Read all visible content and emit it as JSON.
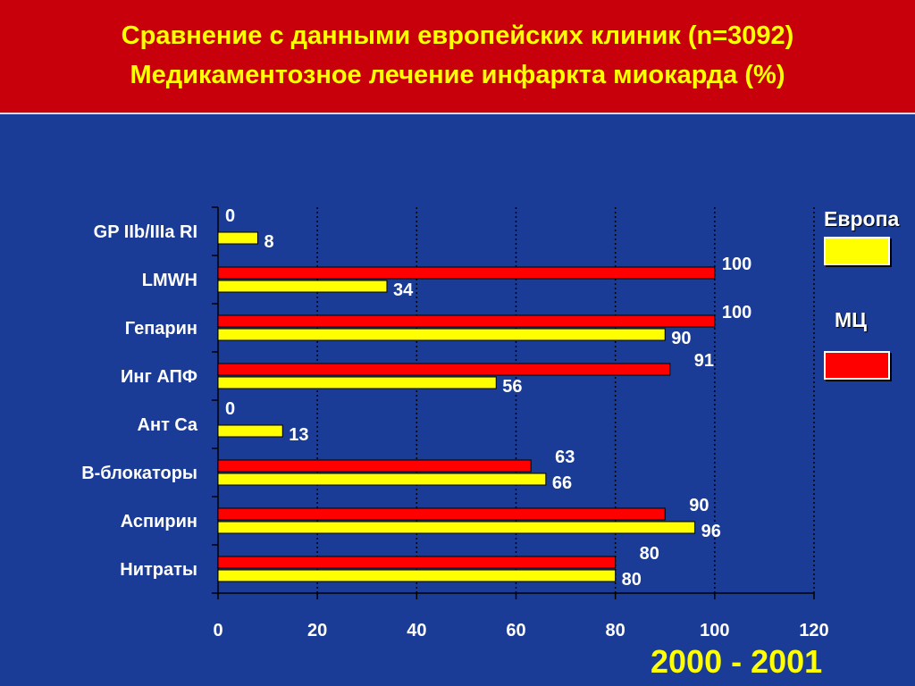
{
  "slide": {
    "title_line1": "Сравнение с данными европейских клиник (n=3092)",
    "title_line2": "Медикаментозное лечение инфаркта миокарда (%)",
    "years": "2000 - 2001"
  },
  "legend": {
    "europe_label": "Европа",
    "mc_label": "МЦ",
    "europe_color": "#ffff00",
    "mc_color": "#ff0000"
  },
  "colors": {
    "background": "#1a3c96",
    "header": "#c8000b",
    "title_text": "#ffff00",
    "europe_bar": "#ffff00",
    "mc_bar": "#ff0000"
  },
  "chart_data": {
    "type": "bar",
    "orientation": "horizontal",
    "categories": [
      "GP IIb/IIIa RI",
      "LMWH",
      "Гепарин",
      "Инг АПФ",
      "Ант Ca",
      "B-блокаторы",
      "Аспирин",
      "Нитраты"
    ],
    "series": [
      {
        "name": "МЦ",
        "values": [
          0,
          100,
          100,
          91,
          0,
          63,
          90,
          80
        ]
      },
      {
        "name": "Европа",
        "values": [
          8,
          34,
          90,
          56,
          13,
          66,
          96,
          80
        ]
      }
    ],
    "xlim": [
      0,
      120
    ],
    "xticks": [
      0,
      20,
      40,
      60,
      80,
      100,
      120
    ],
    "grid": true,
    "legend_position": "right"
  }
}
